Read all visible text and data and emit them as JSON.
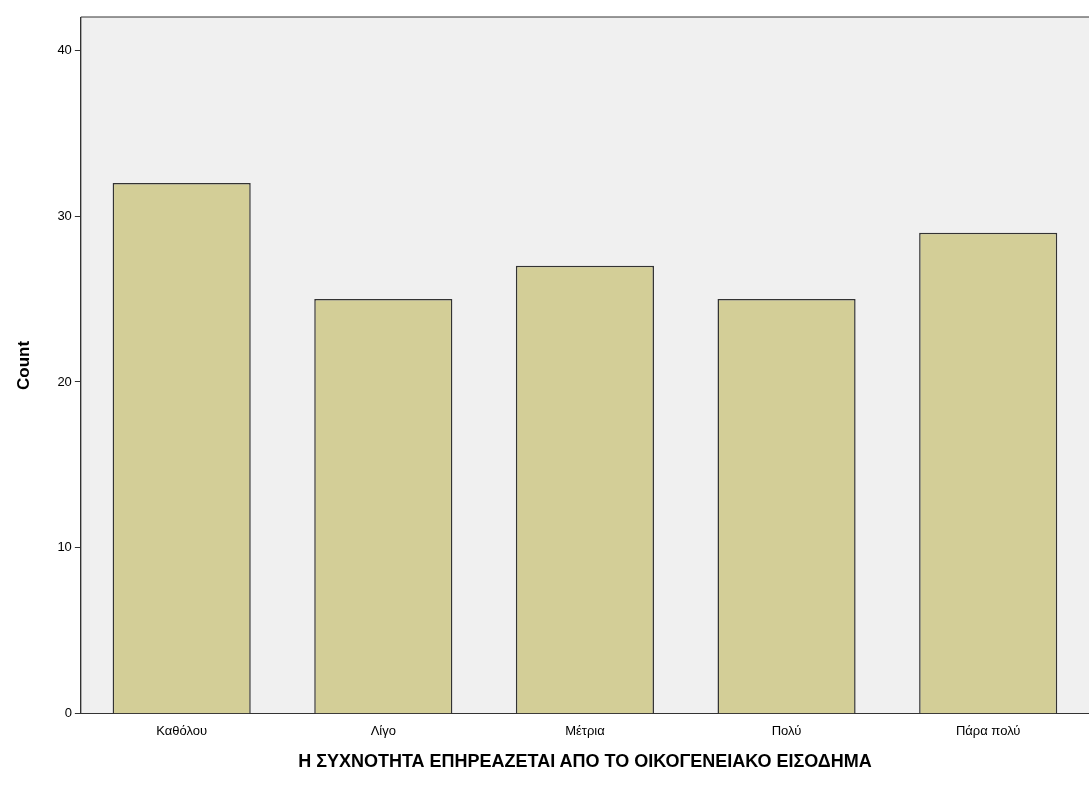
{
  "chart_data": {
    "type": "bar",
    "xlabel": "Η ΣΥΧΝΟΤΗΤΑ ΕΠΗΡΕΑΖΕΤΑΙ ΑΠΟ ΤΟ ΟΙΚΟΓΕΝΕΙΑΚΟ ΕΙΣΟΔΗΜΑ",
    "ylabel": "Count",
    "categories": [
      "Καθόλου",
      "Λίγο",
      "Μέτρια",
      "Πολύ",
      "Πάρα πολύ"
    ],
    "values": [
      32,
      25,
      27,
      25,
      29
    ],
    "color": "#d3ce97",
    "ylim": [
      0,
      42
    ],
    "yticks": [
      0,
      10,
      20,
      30,
      40
    ],
    "grid": false,
    "legend": false
  }
}
